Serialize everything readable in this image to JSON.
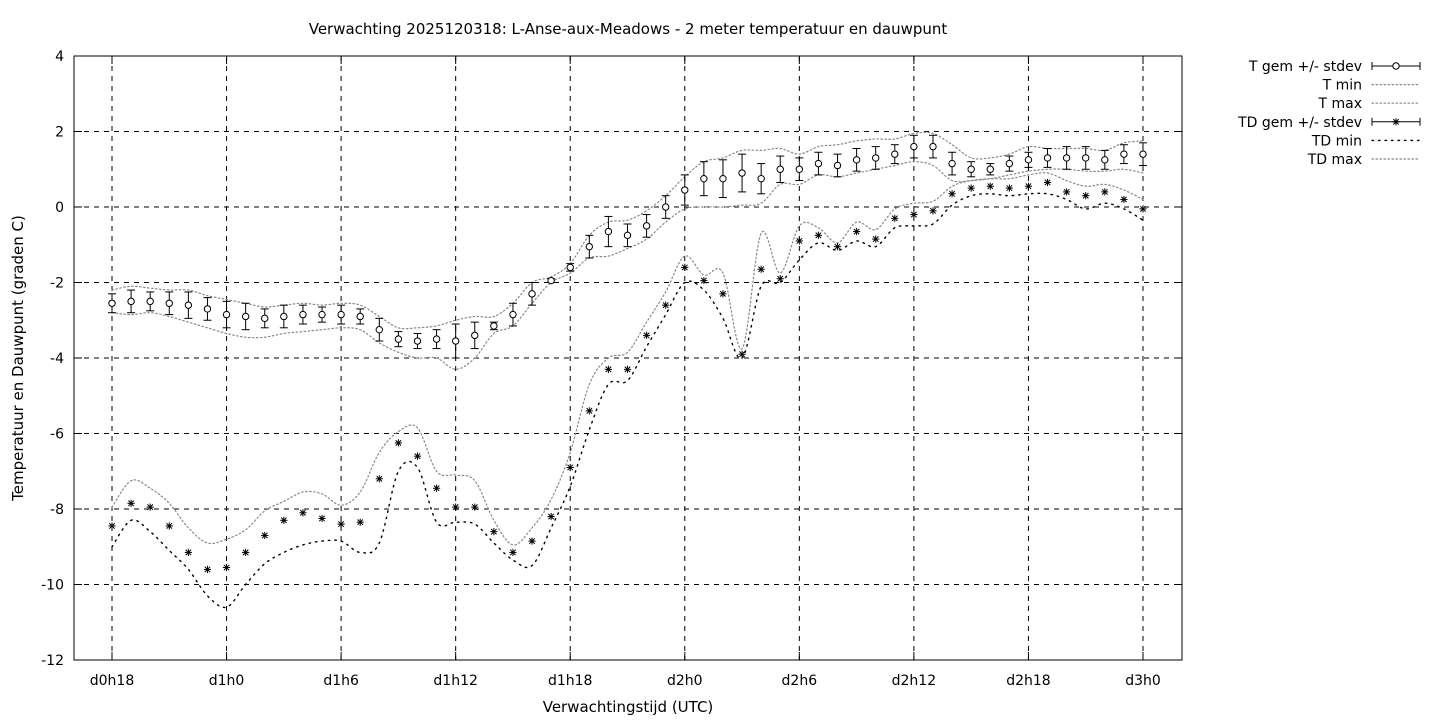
{
  "chart_data": {
    "type": "line",
    "title": "Verwachting 2025120318: L-Anse-aux-Meadows - 2 meter temperatuur en dauwpunt",
    "xlabel": "Verwachtingstijd (UTC)",
    "ylabel": "Temperatuur en Dauwpunt (graden C)",
    "xlim": [
      18,
      72
    ],
    "ylim": [
      -12,
      4
    ],
    "x_ticks": [
      {
        "value": 18,
        "label": "d0h18"
      },
      {
        "value": 24,
        "label": "d1h0"
      },
      {
        "value": 30,
        "label": "d1h6"
      },
      {
        "value": 36,
        "label": "d1h12"
      },
      {
        "value": 42,
        "label": "d1h18"
      },
      {
        "value": 48,
        "label": "d2h0"
      },
      {
        "value": 54,
        "label": "d2h6"
      },
      {
        "value": 60,
        "label": "d2h12"
      },
      {
        "value": 66,
        "label": "d2h18"
      },
      {
        "value": 72,
        "label": "d3h0"
      }
    ],
    "y_ticks": [
      {
        "value": 4,
        "label": "4"
      },
      {
        "value": 2,
        "label": "2"
      },
      {
        "value": 0,
        "label": "0"
      },
      {
        "value": -2,
        "label": "-2"
      },
      {
        "value": -4,
        "label": "-4"
      },
      {
        "value": -6,
        "label": "-6"
      },
      {
        "value": -8,
        "label": "-8"
      },
      {
        "value": -10,
        "label": "-10"
      },
      {
        "value": -12,
        "label": "-12"
      }
    ],
    "grid": true,
    "legend_position": "outside-right",
    "x": [
      18,
      19,
      20,
      21,
      22,
      23,
      24,
      25,
      26,
      27,
      28,
      29,
      30,
      31,
      32,
      33,
      34,
      35,
      36,
      37,
      38,
      39,
      40,
      41,
      42,
      43,
      44,
      45,
      46,
      47,
      48,
      49,
      50,
      51,
      52,
      53,
      54,
      55,
      56,
      57,
      58,
      59,
      60,
      61,
      62,
      63,
      64,
      65,
      66,
      67,
      68,
      69,
      70,
      71,
      72
    ],
    "series": [
      {
        "name": "T gem +/- stdev",
        "style": "points-errorbars",
        "marker": "circle",
        "values": [
          -2.55,
          -2.5,
          -2.5,
          -2.55,
          -2.6,
          -2.7,
          -2.85,
          -2.9,
          -2.95,
          -2.9,
          -2.85,
          -2.85,
          -2.85,
          -2.9,
          -3.25,
          -3.5,
          -3.55,
          -3.5,
          -3.55,
          -3.4,
          -3.15,
          -2.85,
          -2.3,
          -1.95,
          -1.6,
          -1.05,
          -0.65,
          -0.75,
          -0.5,
          0.0,
          0.45,
          0.75,
          0.75,
          0.9,
          0.75,
          1.0,
          1.0,
          1.15,
          1.1,
          1.25,
          1.3,
          1.4,
          1.6,
          1.6,
          1.15,
          1.0,
          1.0,
          1.15,
          1.25,
          1.3,
          1.3,
          1.3,
          1.25,
          1.4,
          1.4
        ],
        "stdev": [
          0.25,
          0.3,
          0.25,
          0.3,
          0.35,
          0.3,
          0.35,
          0.35,
          0.25,
          0.3,
          0.25,
          0.2,
          0.25,
          0.2,
          0.3,
          0.2,
          0.2,
          0.25,
          0.45,
          0.35,
          0.1,
          0.3,
          0.3,
          0.05,
          0.1,
          0.3,
          0.4,
          0.3,
          0.3,
          0.3,
          0.4,
          0.45,
          0.5,
          0.5,
          0.4,
          0.35,
          0.3,
          0.3,
          0.3,
          0.3,
          0.3,
          0.25,
          0.3,
          0.3,
          0.3,
          0.2,
          0.15,
          0.2,
          0.2,
          0.25,
          0.3,
          0.3,
          0.25,
          0.25,
          0.3
        ]
      },
      {
        "name": "T min",
        "style": "dotted",
        "values": [
          -2.8,
          -2.85,
          -2.8,
          -2.9,
          -3.05,
          -3.2,
          -3.35,
          -3.45,
          -3.45,
          -3.35,
          -3.3,
          -3.25,
          -3.2,
          -3.25,
          -3.6,
          -3.85,
          -4.0,
          -4.0,
          -4.3,
          -4.0,
          -3.35,
          -3.15,
          -2.55,
          -2.0,
          -1.75,
          -1.35,
          -1.3,
          -1.1,
          -0.85,
          -0.4,
          -0.05,
          0.0,
          0.0,
          0.05,
          0.1,
          0.6,
          0.6,
          0.85,
          0.8,
          0.9,
          1.0,
          1.1,
          1.2,
          1.1,
          0.7,
          0.7,
          0.75,
          0.85,
          0.95,
          1.0,
          1.0,
          0.95,
          0.95,
          1.0,
          0.9
        ]
      },
      {
        "name": "T max",
        "style": "dotted",
        "values": [
          -2.2,
          -2.1,
          -2.15,
          -2.2,
          -2.2,
          -2.35,
          -2.45,
          -2.55,
          -2.65,
          -2.6,
          -2.55,
          -2.6,
          -2.55,
          -2.6,
          -2.9,
          -3.2,
          -3.2,
          -3.15,
          -3.0,
          -2.9,
          -2.9,
          -2.55,
          -2.0,
          -1.85,
          -1.5,
          -0.75,
          -0.4,
          -0.35,
          -0.1,
          0.3,
          0.8,
          1.2,
          1.3,
          1.5,
          1.5,
          1.55,
          1.4,
          1.6,
          1.65,
          1.75,
          1.8,
          1.8,
          1.95,
          1.95,
          1.65,
          1.3,
          1.3,
          1.4,
          1.6,
          1.55,
          1.55,
          1.55,
          1.5,
          1.7,
          1.75
        ]
      },
      {
        "name": "TD gem +/- stdev",
        "style": "points-errorbars",
        "marker": "asterisk",
        "values": [
          -8.45,
          -7.85,
          -7.95,
          -8.45,
          -9.15,
          -9.6,
          -9.55,
          -9.15,
          -8.7,
          -8.3,
          -8.1,
          -8.25,
          -8.4,
          -8.35,
          -7.2,
          -6.25,
          -6.6,
          -7.45,
          -7.95,
          -7.95,
          -8.6,
          -9.15,
          -8.85,
          -8.2,
          -6.9,
          -5.4,
          -4.3,
          -4.3,
          -3.4,
          -2.6,
          -1.6,
          -1.95,
          -2.3,
          -3.9,
          -1.65,
          -1.9,
          -0.9,
          -0.75,
          -1.05,
          -0.65,
          -0.85,
          -0.3,
          -0.2,
          -0.1,
          0.35,
          0.5,
          0.55,
          0.5,
          0.55,
          0.65,
          0.4,
          0.3,
          0.4,
          0.2,
          -0.05
        ]
      },
      {
        "name": "TD min",
        "style": "loose-dotted",
        "values": [
          -9.0,
          -8.3,
          -8.6,
          -9.1,
          -9.6,
          -10.3,
          -10.6,
          -10.0,
          -9.45,
          -9.15,
          -8.95,
          -8.85,
          -8.85,
          -9.15,
          -8.9,
          -7.0,
          -6.9,
          -8.35,
          -8.35,
          -8.4,
          -8.9,
          -9.35,
          -9.5,
          -8.5,
          -7.4,
          -5.9,
          -4.7,
          -4.6,
          -3.7,
          -2.85,
          -2.0,
          -2.2,
          -2.95,
          -4.0,
          -2.1,
          -2.0,
          -1.4,
          -0.95,
          -1.15,
          -0.9,
          -1.05,
          -0.55,
          -0.5,
          -0.45,
          0.05,
          0.3,
          0.35,
          0.3,
          0.35,
          0.35,
          0.2,
          -0.05,
          0.1,
          -0.05,
          -0.35
        ]
      },
      {
        "name": "TD max",
        "style": "dotted",
        "values": [
          -7.95,
          -7.25,
          -7.45,
          -7.85,
          -8.5,
          -8.9,
          -8.8,
          -8.55,
          -8.05,
          -7.8,
          -7.55,
          -7.6,
          -7.9,
          -7.55,
          -6.5,
          -5.95,
          -5.85,
          -7.0,
          -7.1,
          -7.25,
          -8.3,
          -8.95,
          -8.5,
          -7.75,
          -6.5,
          -4.7,
          -4.0,
          -3.85,
          -3.05,
          -2.25,
          -1.3,
          -1.8,
          -1.75,
          -3.75,
          -0.7,
          -1.75,
          -0.5,
          -0.55,
          -0.95,
          -0.4,
          -0.6,
          -0.05,
          0.1,
          0.15,
          0.55,
          0.7,
          0.75,
          0.75,
          0.85,
          0.9,
          0.7,
          0.55,
          0.6,
          0.45,
          0.2
        ]
      }
    ]
  }
}
